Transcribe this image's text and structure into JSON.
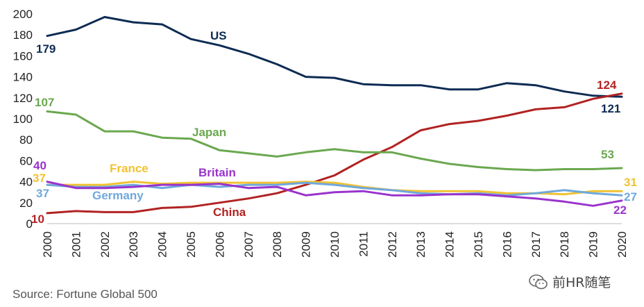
{
  "chart_data": {
    "type": "line",
    "title": "",
    "xlabel": "",
    "ylabel": "",
    "ylim": [
      0,
      200
    ],
    "yticks": [
      0,
      20,
      40,
      60,
      80,
      100,
      120,
      140,
      160,
      180,
      200
    ],
    "x": [
      "2000",
      "2001",
      "2002",
      "2003",
      "2004",
      "2005",
      "2006",
      "2007",
      "2008",
      "2009",
      "2010",
      "2011",
      "2012",
      "2013",
      "2014",
      "2015",
      "2016",
      "2017",
      "2018",
      "2019",
      "2020"
    ],
    "series": [
      {
        "key": "us",
        "name": "US",
        "color": "#0d2b53",
        "values": [
          179,
          185,
          197,
          192,
          190,
          176,
          170,
          162,
          152,
          140,
          139,
          133,
          132,
          132,
          128,
          128,
          134,
          132,
          126,
          122,
          121
        ],
        "start_label": "179",
        "end_label": "121"
      },
      {
        "key": "china",
        "name": "China",
        "color": "#b22222",
        "values": [
          10,
          12,
          11,
          11,
          15,
          16,
          20,
          24,
          29,
          37,
          46,
          61,
          73,
          89,
          95,
          98,
          103,
          109,
          111,
          119,
          124
        ],
        "start_label": "10",
        "end_label": "124"
      },
      {
        "key": "japan",
        "name": "Japan",
        "color": "#6aa84f",
        "values": [
          107,
          104,
          88,
          88,
          82,
          81,
          70,
          67,
          64,
          68,
          71,
          68,
          68,
          62,
          57,
          54,
          52,
          51,
          52,
          52,
          53
        ],
        "start_label": "107",
        "end_label": "53"
      },
      {
        "key": "france",
        "name": "France",
        "color": "#f1c232",
        "values": [
          37,
          37,
          37,
          40,
          38,
          39,
          39,
          39,
          39,
          40,
          39,
          35,
          32,
          31,
          31,
          31,
          29,
          29,
          28,
          31,
          31
        ],
        "start_label": "37",
        "end_label": "31"
      },
      {
        "key": "germany",
        "name": "Germany",
        "color": "#6fa8dc",
        "values": [
          37,
          35,
          35,
          37,
          34,
          37,
          35,
          37,
          37,
          39,
          37,
          34,
          32,
          29,
          28,
          29,
          27,
          29,
          32,
          29,
          27
        ],
        "start_label": "37",
        "end_label": "27"
      },
      {
        "key": "britain",
        "name": "Britain",
        "color": "#9933cc",
        "values": [
          40,
          34,
          34,
          35,
          37,
          37,
          38,
          34,
          35,
          27,
          30,
          31,
          27,
          27,
          28,
          28,
          26,
          24,
          21,
          17,
          22
        ],
        "start_label": "40",
        "end_label": "22"
      }
    ]
  },
  "source": "Source:  Fortune Global 500",
  "watermark": "前HR随笔"
}
